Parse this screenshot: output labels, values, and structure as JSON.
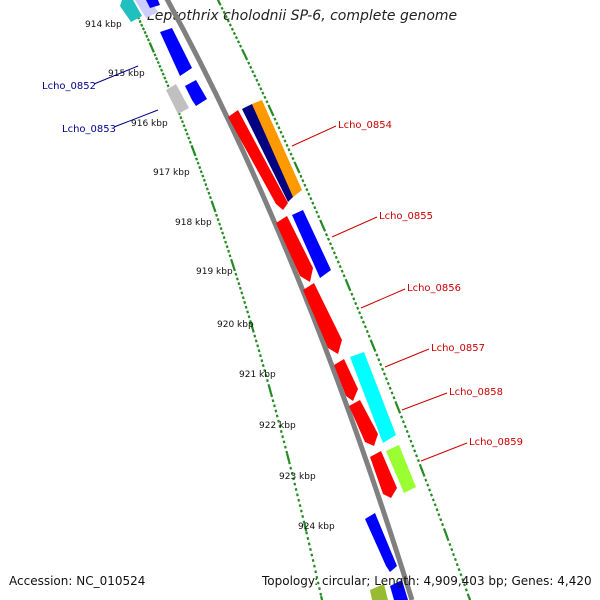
{
  "title": "Leptothrix cholodnii SP-6, complete genome",
  "footer": {
    "accession": "Accession: NC_010524",
    "summary": "Topology: circular; Length: 4,909,403 bp; Genes: 4,420"
  },
  "scale": {
    "unit": "kbp",
    "tick_labels": [
      "914 kbp",
      "915 kbp",
      "916 kbp",
      "917 kbp",
      "918 kbp",
      "919 kbp",
      "920 kbp",
      "921 kbp",
      "922 kbp",
      "923 kbp",
      "924 kbp"
    ]
  },
  "colors": {
    "backbone": "#808080",
    "tick_green": "#228b22",
    "minus_label": "#00008b",
    "plus_label": "#cc0000",
    "red": "#ff0000",
    "blue": "#0000ff",
    "cyan": "#00ffff",
    "teal": "#20c0c0",
    "orange": "#ff9900",
    "navy": "#000080",
    "grey": "#c0c0c0",
    "lime": "#99ff33",
    "olive": "#99bb33"
  },
  "gene_labels": [
    {
      "name": "Lcho_0852",
      "strand": "minus"
    },
    {
      "name": "Lcho_0853",
      "strand": "minus"
    },
    {
      "name": "Lcho_0854",
      "strand": "plus"
    },
    {
      "name": "Lcho_0855",
      "strand": "plus"
    },
    {
      "name": "Lcho_0856",
      "strand": "plus"
    },
    {
      "name": "Lcho_0857",
      "strand": "plus"
    },
    {
      "name": "Lcho_0858",
      "strand": "plus"
    },
    {
      "name": "Lcho_0859",
      "strand": "plus"
    }
  ]
}
